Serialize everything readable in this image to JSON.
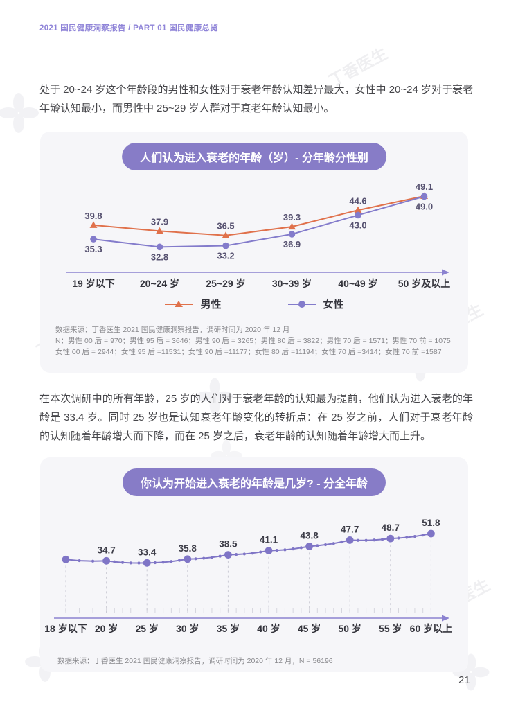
{
  "header": {
    "breadcrumb": "2021 国民健康洞察报告 / PART 01 国民健康总览"
  },
  "paragraphs": {
    "p1": "处于 20~24 岁这个年龄段的男性和女性对于衰老年龄认知差异最大，女性中 20~24 岁对于衰老年龄认知最小，而男性中 25~29 岁人群对于衰老年龄认知最小。",
    "p2": "在本次调研中的所有年龄，25 岁的人们对于衰老年龄的认知最为提前，他们认为进入衰老的年龄是 33.4 岁。同时 25 岁也是认知衰老年龄变化的转折点：在 25 岁之前，人们对于衰老年龄的认知随着年龄增大而下降，而在 25 岁之后，衰老年龄的认知随着年龄增大而上升。"
  },
  "chart_data": [
    {
      "type": "line",
      "title": "人们认为进入衰老的年龄（岁）- 分年龄分性别",
      "categories": [
        "19 岁以下",
        "20~24 岁",
        "25~29 岁",
        "30~39 岁",
        "40~49 岁",
        "50 岁及以上"
      ],
      "series": [
        {
          "name": "男性",
          "marker": "triangle",
          "color": "#E0714B",
          "values": [
            39.8,
            37.9,
            36.5,
            39.3,
            44.6,
            49.1
          ]
        },
        {
          "name": "女性",
          "marker": "circle",
          "color": "#837BCB",
          "values": [
            35.3,
            32.8,
            33.2,
            36.9,
            43.0,
            49.0
          ]
        }
      ],
      "ylim": [
        30,
        52
      ],
      "grid": false,
      "legend_position": "bottom",
      "source_lines": [
        "数据来源：丁香医生 2021 国民健康洞察报告，调研时间为 2020 年 12 月",
        "N：男性 00 后 = 970；男性 95 后 = 3646；男性 90 后 = 3265；男性 80 后 = 3822；男性 70 后 = 1571；男性 70 前 = 1075",
        "女性 00 后 = 2944；女性 95 后 =11531；女性 90 后 =11177；女性 80 后 =11194；女性 70 后 =3414；女性 70 前 =1587"
      ]
    },
    {
      "type": "line",
      "title": "你认为开始进入衰老的年龄是几岁? - 分全年龄",
      "categories": [
        "18 岁以下",
        "20 岁",
        "25 岁",
        "30 岁",
        "35 岁",
        "40 岁",
        "45 岁",
        "50 岁",
        "55 岁",
        "60 岁以上"
      ],
      "series": [
        {
          "name": "全年龄",
          "color": "#7F75C6",
          "values": [
            35.6,
            34.7,
            33.4,
            35.8,
            38.5,
            41.1,
            43.8,
            47.7,
            48.7,
            51.8
          ]
        }
      ],
      "value_labels": [
        "",
        "34.7",
        "33.4",
        "35.8",
        "38.5",
        "41.1",
        "43.8",
        "47.7",
        "48.7",
        "51.8"
      ],
      "minor_points_between": [
        2,
        4,
        4,
        4,
        4,
        4,
        4,
        4,
        4
      ],
      "ylim": [
        30,
        55
      ],
      "grid": false,
      "source": "数据来源：丁香医生 2021 国民健康洞察报告，调研时间为 2020 年 12 月，N = 56196"
    }
  ],
  "watermark": {
    "text": "丁香医生"
  },
  "colors": {
    "accent": "#877CC7",
    "header_text": "#8F84D8",
    "axis": "#8B82D0",
    "male": "#E0714B",
    "female": "#837BCB",
    "card_bg": "#F6F6F9"
  },
  "page_number": "21"
}
